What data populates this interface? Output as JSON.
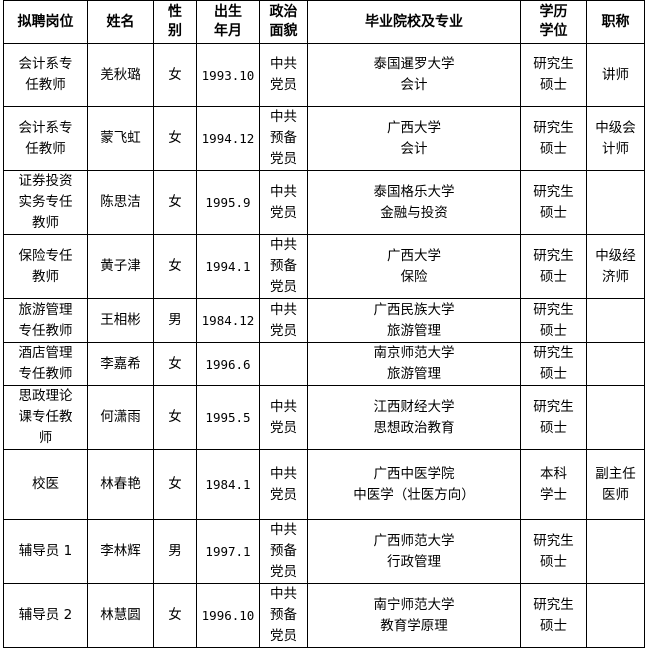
{
  "headers": [
    "拟聘岗位",
    "姓名",
    "性\n别",
    "出生\n年月",
    "政治\n面貌",
    "毕业院校及专业",
    "学历\n学位",
    "职称"
  ],
  "rows": [
    [
      "会计系专\n任教师",
      "羌秋璐",
      "女",
      "1993.10",
      "中共\n党员",
      "泰国暹罗大学\n会计",
      "研究生\n硕士",
      "讲师"
    ],
    [
      "会计系专\n任教师",
      "蒙飞虹",
      "女",
      "1994.12",
      "中共\n预备\n党员",
      "广西大学\n会计",
      "研究生\n硕士",
      "中级会\n计师"
    ],
    [
      "证券投资\n实务专任\n教师",
      "陈思洁",
      "女",
      "1995.9",
      "中共\n党员",
      "泰国格乐大学\n金融与投资",
      "研究生\n硕士",
      ""
    ],
    [
      "保险专任\n教师",
      "黄子津",
      "女",
      "1994.1",
      "中共\n预备\n党员",
      "广西大学\n保险",
      "研究生\n硕士",
      "中级经\n济师"
    ],
    [
      "旅游管理\n专任教师",
      "王相彬",
      "男",
      "1984.12",
      "中共\n党员",
      "广西民族大学\n旅游管理",
      "研究生\n硕士",
      ""
    ],
    [
      "酒店管理\n专任教师",
      "李嘉希",
      "女",
      "1996.6",
      "",
      "南京师范大学\n旅游管理",
      "研究生\n硕士",
      ""
    ],
    [
      "思政理论\n课专任教\n师",
      "何潇雨",
      "女",
      "1995.5",
      "中共\n党员",
      "江西财经大学\n思想政治教育",
      "研究生\n硕士",
      ""
    ],
    [
      "校医",
      "林春艳",
      "女",
      "1984.1",
      "中共\n党员",
      "广西中医学院\n中医学（壮医方向）",
      "本科\n学士",
      "副主任\n医师"
    ],
    [
      "辅导员 1",
      "李林辉",
      "男",
      "1997.1",
      "中共\n预备\n党员",
      "广西师范大学\n行政管理",
      "研究生\n硕士",
      ""
    ],
    [
      "辅导员 2",
      "林慧圆",
      "女",
      "1996.10",
      "中共\n预备\n党员",
      "南宁师范大学\n教育学原理",
      "研究生\n硕士",
      ""
    ]
  ]
}
